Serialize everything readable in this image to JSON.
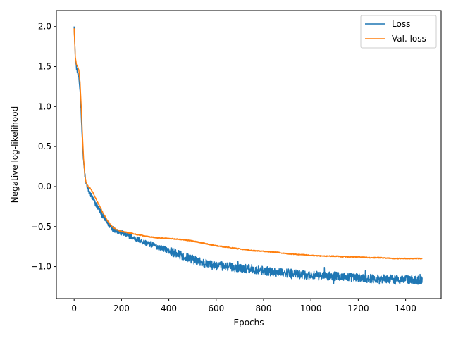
{
  "chart_data": {
    "type": "line",
    "title": "",
    "xlabel": "Epochs",
    "ylabel": "Negative log-likelihood",
    "xlim": [
      -75,
      1550
    ],
    "ylim": [
      -1.4,
      2.2
    ],
    "xticks": [
      0,
      200,
      400,
      600,
      800,
      1000,
      1200,
      1400
    ],
    "yticks": [
      -1.0,
      -0.5,
      0.0,
      0.5,
      1.0,
      1.5,
      2.0
    ],
    "xtick_labels": [
      "0",
      "200",
      "400",
      "600",
      "800",
      "1000",
      "1200",
      "1400"
    ],
    "ytick_labels": [
      "−1.0",
      "−0.5",
      "0.0",
      "0.5",
      "1.0",
      "1.5",
      "2.0"
    ],
    "grid": false,
    "legend": "top-right",
    "series": [
      {
        "name": "Loss",
        "color": "#1f77b4",
        "noise": "high-frequency, amplitude about 0.05 (larger after epoch 400)",
        "x": [
          0,
          5,
          10,
          15,
          20,
          25,
          30,
          35,
          40,
          45,
          50,
          60,
          70,
          80,
          100,
          120,
          140,
          160,
          180,
          200,
          250,
          300,
          350,
          400,
          450,
          500,
          550,
          600,
          650,
          700,
          750,
          800,
          850,
          900,
          950,
          1000,
          1050,
          1100,
          1150,
          1200,
          1250,
          1300,
          1350,
          1400,
          1450,
          1470
        ],
        "y": [
          2.02,
          1.6,
          1.48,
          1.42,
          1.35,
          1.2,
          0.9,
          0.55,
          0.3,
          0.15,
          0.05,
          -0.05,
          -0.1,
          -0.16,
          -0.26,
          -0.36,
          -0.45,
          -0.52,
          -0.55,
          -0.58,
          -0.64,
          -0.7,
          -0.75,
          -0.8,
          -0.86,
          -0.91,
          -0.96,
          -0.99,
          -1.0,
          -1.02,
          -1.03,
          -1.05,
          -1.07,
          -1.08,
          -1.1,
          -1.11,
          -1.12,
          -1.12,
          -1.13,
          -1.14,
          -1.15,
          -1.15,
          -1.16,
          -1.16,
          -1.17,
          -1.17
        ]
      },
      {
        "name": "Val. loss",
        "color": "#ff7f0e",
        "noise": "slight, amplitude about 0.01",
        "x": [
          0,
          5,
          10,
          15,
          20,
          25,
          30,
          35,
          40,
          45,
          50,
          60,
          70,
          80,
          100,
          120,
          140,
          160,
          180,
          200,
          250,
          300,
          350,
          400,
          450,
          500,
          550,
          600,
          650,
          700,
          750,
          800,
          850,
          900,
          950,
          1000,
          1050,
          1100,
          1150,
          1200,
          1250,
          1300,
          1350,
          1400,
          1450,
          1470
        ],
        "y": [
          1.98,
          1.62,
          1.52,
          1.5,
          1.45,
          1.3,
          1.0,
          0.65,
          0.35,
          0.15,
          0.05,
          0.0,
          -0.03,
          -0.08,
          -0.2,
          -0.32,
          -0.42,
          -0.5,
          -0.54,
          -0.56,
          -0.59,
          -0.62,
          -0.64,
          -0.65,
          -0.66,
          -0.68,
          -0.71,
          -0.74,
          -0.76,
          -0.78,
          -0.8,
          -0.81,
          -0.82,
          -0.84,
          -0.85,
          -0.86,
          -0.87,
          -0.87,
          -0.88,
          -0.88,
          -0.89,
          -0.89,
          -0.9,
          -0.9,
          -0.9,
          -0.9
        ]
      }
    ]
  }
}
